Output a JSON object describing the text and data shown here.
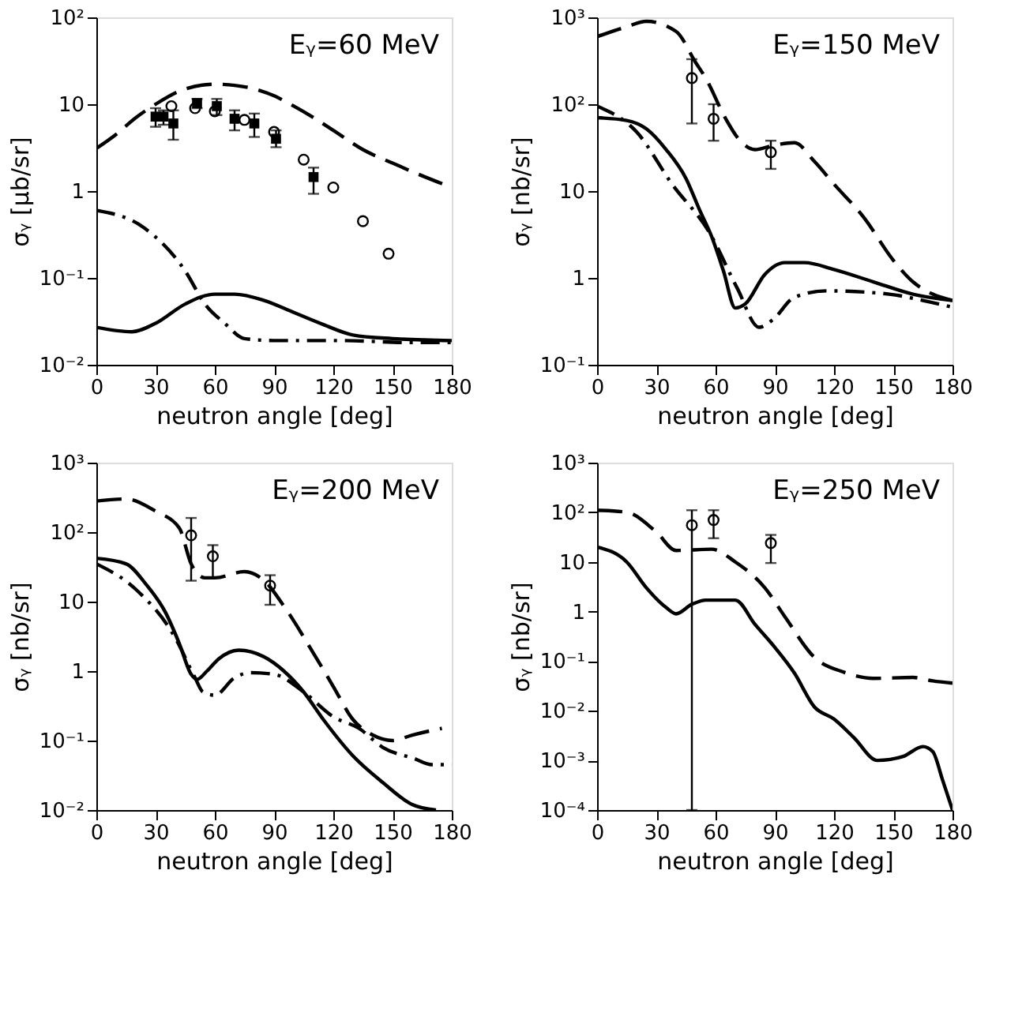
{
  "chart_data": [
    {
      "type": "line",
      "xlabel": "neutron angle [deg]",
      "ylabel": "σᵧ [μb/sr]",
      "annotations": [
        "Eᵧ=60 MeV"
      ],
      "log": true,
      "xlim": [
        0,
        180
      ],
      "xticks": [
        0,
        30,
        60,
        90,
        120,
        150,
        180
      ],
      "ylim": [
        0.01,
        100
      ],
      "yticks": [
        {
          "value": 0.01,
          "label": "10⁻²"
        },
        {
          "value": 0.1,
          "label": "10⁻¹"
        },
        1,
        10,
        {
          "value": 100,
          "label": "10²"
        }
      ],
      "series": [
        {
          "type": "line",
          "line_style": "dashed",
          "color": "#000000",
          "x": [
            0,
            10,
            20,
            30,
            45,
            60,
            70,
            80,
            90,
            100,
            110,
            120,
            135,
            150,
            165,
            180
          ],
          "values": [
            3.1,
            4.5,
            7,
            10,
            15,
            17,
            16.5,
            15,
            12.5,
            9.5,
            7,
            5,
            3,
            2.1,
            1.5,
            1.1
          ]
        },
        {
          "type": "line",
          "line_style": "dashdot",
          "color": "#000000",
          "x": [
            0,
            24,
            45,
            55,
            65,
            75,
            90,
            125,
            158,
            180
          ],
          "values": [
            0.6,
            0.38,
            0.12,
            0.05,
            0.03,
            0.02,
            0.019,
            0.019,
            0.018,
            0.018
          ]
        },
        {
          "type": "line",
          "line_style": "solid",
          "color": "#000000",
          "x": [
            0,
            18,
            30,
            45,
            60,
            70,
            85,
            100,
            115,
            130,
            150,
            180
          ],
          "values": [
            0.027,
            0.024,
            0.03,
            0.05,
            0.065,
            0.065,
            0.055,
            0.04,
            0.029,
            0.022,
            0.02,
            0.019
          ]
        },
        {
          "type": "scatter",
          "marker": "circle",
          "color": "#000000",
          "x": [
            38,
            50,
            60,
            75,
            90,
            105,
            120,
            135,
            148
          ],
          "values": [
            9.5,
            9,
            8.3,
            6.6,
            4.8,
            2.3,
            1.1,
            0.45,
            0.19
          ]
        },
        {
          "type": "scatter",
          "marker": "square",
          "color": "#000000",
          "x": [
            30,
            34,
            39,
            51,
            61,
            70,
            80,
            91,
            110
          ],
          "values": [
            7.2,
            7.2,
            6,
            10.3,
            9.5,
            6.8,
            6,
            4,
            1.45
          ],
          "errors": [
            [
              5.5,
              9
            ],
            [
              5.8,
              8.5
            ],
            [
              3.9,
              8.5
            ],
            [
              9,
              11.5
            ],
            [
              7.5,
              11.5
            ],
            [
              5,
              8.5
            ],
            [
              4.2,
              7.8
            ],
            [
              3.2,
              5
            ],
            [
              0.93,
              1.86
            ]
          ]
        }
      ]
    },
    {
      "type": "line",
      "xlabel": "neutron angle [deg]",
      "ylabel": "σᵧ [nb/sr]",
      "annotations": [
        "Eᵧ=150 MeV"
      ],
      "log": true,
      "xlim": [
        0,
        180
      ],
      "xticks": [
        0,
        30,
        60,
        90,
        120,
        150,
        180
      ],
      "ylim": [
        0.1,
        1000
      ],
      "yticks": [
        {
          "value": 0.1,
          "label": "10⁻¹"
        },
        1,
        10,
        {
          "value": 100,
          "label": "10²"
        },
        {
          "value": 1000,
          "label": "10³"
        }
      ],
      "series": [
        {
          "type": "line",
          "line_style": "dashed",
          "color": "#000000",
          "x": [
            0,
            15,
            25,
            40,
            50,
            55,
            65,
            72,
            80,
            88,
            100,
            110,
            120,
            135,
            150,
            160,
            170,
            180
          ],
          "values": [
            600,
            780,
            900,
            690,
            300,
            200,
            69,
            39,
            30,
            33,
            36,
            22,
            12,
            5,
            1.6,
            0.9,
            0.65,
            0.55
          ]
        },
        {
          "type": "line",
          "line_style": "dashdot",
          "color": "#000000",
          "x": [
            0,
            20,
            38,
            57,
            71,
            82,
            89,
            100,
            116,
            148,
            165,
            180
          ],
          "values": [
            95,
            48,
            12,
            3.3,
            0.76,
            0.27,
            0.33,
            0.6,
            0.71,
            0.65,
            0.55,
            0.46
          ]
        },
        {
          "type": "line",
          "line_style": "solid",
          "color": "#000000",
          "x": [
            0,
            15,
            25,
            35,
            45,
            52,
            58,
            64,
            70,
            75,
            85,
            95,
            105,
            120,
            140,
            160,
            180
          ],
          "values": [
            70,
            65,
            52,
            30,
            14,
            6,
            3,
            1.2,
            0.45,
            0.5,
            1.1,
            1.5,
            1.5,
            1.25,
            0.9,
            0.65,
            0.55
          ]
        },
        {
          "type": "scatter",
          "marker": "circle",
          "color": "#000000",
          "x": [
            48,
            59,
            88
          ],
          "values": [
            200,
            68,
            28
          ],
          "errors": [
            [
              60,
              330
            ],
            [
              38,
              100
            ],
            [
              18,
              38
            ]
          ]
        }
      ]
    },
    {
      "type": "line",
      "xlabel": "neutron angle [deg]",
      "ylabel": "σᵧ [nb/sr]",
      "annotations": [
        "Eᵧ=200 MeV"
      ],
      "log": true,
      "xlim": [
        0,
        180
      ],
      "xticks": [
        0,
        30,
        60,
        90,
        120,
        150,
        180
      ],
      "ylim": [
        0.01,
        1000
      ],
      "yticks": [
        {
          "value": 0.01,
          "label": "10⁻²"
        },
        {
          "value": 0.1,
          "label": "10⁻¹"
        },
        1,
        10,
        {
          "value": 100,
          "label": "10²"
        },
        {
          "value": 1000,
          "label": "10³"
        }
      ],
      "series": [
        {
          "type": "line",
          "line_style": "dashed",
          "color": "#000000",
          "x": [
            0,
            15,
            30,
            42,
            48,
            55,
            60,
            75,
            85,
            95,
            110,
            120,
            130,
            140,
            150,
            160,
            175
          ],
          "values": [
            280,
            300,
            200,
            115,
            35,
            22,
            22,
            27,
            20,
            8.6,
            1.8,
            0.6,
            0.2,
            0.12,
            0.1,
            0.12,
            0.15
          ]
        },
        {
          "type": "line",
          "line_style": "dashdot",
          "color": "#000000",
          "x": [
            0,
            20,
            40,
            50,
            54,
            60,
            70,
            78,
            90,
            105,
            120,
            133,
            145,
            161,
            170,
            180
          ],
          "values": [
            35,
            15,
            3,
            0.8,
            0.5,
            0.45,
            0.8,
            0.95,
            0.9,
            0.5,
            0.22,
            0.15,
            0.08,
            0.055,
            0.045,
            0.045
          ]
        },
        {
          "type": "line",
          "line_style": "solid",
          "color": "#000000",
          "x": [
            0,
            15,
            25,
            35,
            42,
            48,
            51,
            56,
            62,
            72,
            85,
            95,
            105,
            115,
            130,
            145,
            160,
            172
          ],
          "values": [
            42,
            35,
            18,
            7,
            2.5,
            0.9,
            0.76,
            1,
            1.5,
            2,
            1.6,
            1,
            0.5,
            0.2,
            0.06,
            0.025,
            0.012,
            0.01
          ]
        },
        {
          "type": "scatter",
          "marker": "circle",
          "color": "#000000",
          "x": [
            48,
            59,
            88
          ],
          "values": [
            90,
            45,
            17
          ],
          "errors": [
            [
              20,
              160
            ],
            [
              22,
              65
            ],
            [
              9,
              24
            ]
          ]
        }
      ]
    },
    {
      "type": "line",
      "xlabel": "neutron angle [deg]",
      "ylabel": "σᵧ [nb/sr]",
      "annotations": [
        "Eᵧ=250 MeV"
      ],
      "log": true,
      "xlim": [
        0,
        180
      ],
      "xticks": [
        0,
        30,
        60,
        90,
        120,
        150,
        180
      ],
      "ylim": [
        0.0001,
        1000
      ],
      "yticks": [
        {
          "value": 0.0001,
          "label": "10⁻⁴"
        },
        {
          "value": 0.001,
          "label": "10⁻³"
        },
        {
          "value": 0.01,
          "label": "10⁻²"
        },
        {
          "value": 0.1,
          "label": "10⁻¹"
        },
        1,
        10,
        {
          "value": 100,
          "label": "10²"
        },
        {
          "value": 1000,
          "label": "10³"
        }
      ],
      "series": [
        {
          "type": "line",
          "line_style": "dashed",
          "color": "#000000",
          "x": [
            0,
            15,
            30,
            40,
            58,
            70,
            85,
            95,
            110,
            125,
            140,
            160,
            170,
            180
          ],
          "values": [
            110,
            100,
            40,
            17,
            18,
            10,
            3,
            0.8,
            0.12,
            0.06,
            0.045,
            0.047,
            0.04,
            0.036
          ]
        },
        {
          "type": "line",
          "line_style": "solid",
          "color": "#000000",
          "x": [
            0,
            15,
            25,
            35,
            40,
            48,
            55,
            70,
            80,
            90,
            100,
            110,
            120,
            130,
            142,
            155,
            165,
            170,
            175,
            180
          ],
          "values": [
            20,
            10,
            3,
            1.2,
            0.9,
            1.4,
            1.7,
            1.7,
            0.55,
            0.19,
            0.057,
            0.012,
            0.0068,
            0.0029,
            0.001,
            0.0012,
            0.0019,
            0.0015,
            0.0004,
            0.0001
          ]
        },
        {
          "type": "scatter",
          "marker": "circle",
          "color": "#000000",
          "x": [
            48,
            59,
            88
          ],
          "values": [
            55,
            70,
            24
          ],
          "errors": [
            [
              0.0001,
              110
            ],
            [
              30,
              110
            ],
            [
              9.5,
              35
            ]
          ]
        }
      ]
    }
  ]
}
